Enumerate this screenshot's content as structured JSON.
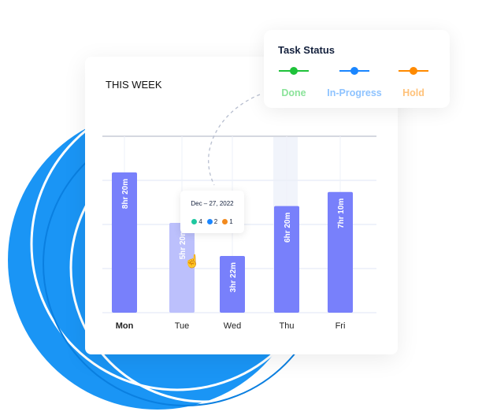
{
  "card": {
    "title": "THIS WEEK"
  },
  "task_status": {
    "title": "Task Status",
    "items": [
      {
        "label": "Done",
        "color": "#1ec23a",
        "text_color": "#8be39a"
      },
      {
        "label": "In-Progress",
        "color": "#1a86ff",
        "text_color": "#8ec3ff"
      },
      {
        "label": "Hold",
        "color": "#ff8a00",
        "text_color": "#ffc27a"
      }
    ]
  },
  "tooltip": {
    "date": "Dec – 27, 2022",
    "counts": [
      {
        "value": "4",
        "color": "#1fc8a0"
      },
      {
        "value": "2",
        "color": "#1a86ff"
      },
      {
        "value": "1",
        "color": "#f28a1e"
      }
    ]
  },
  "chart_data": {
    "type": "bar",
    "title": "THIS WEEK",
    "categories": [
      "Mon",
      "Tue",
      "Wed",
      "Thu",
      "Fri"
    ],
    "values": [
      8.33,
      5.33,
      3.37,
      6.33,
      7.17
    ],
    "data_labels": [
      "8hr 20m",
      "5hr 20m",
      "3hr 22m",
      "6hr 20m",
      "7hr 10m"
    ],
    "unit": "hours",
    "ylim": [
      0,
      11
    ],
    "grid": true,
    "highlighted": "Tue",
    "bar_color": "#7880fb",
    "highlight_color": "#bcc0fc"
  }
}
